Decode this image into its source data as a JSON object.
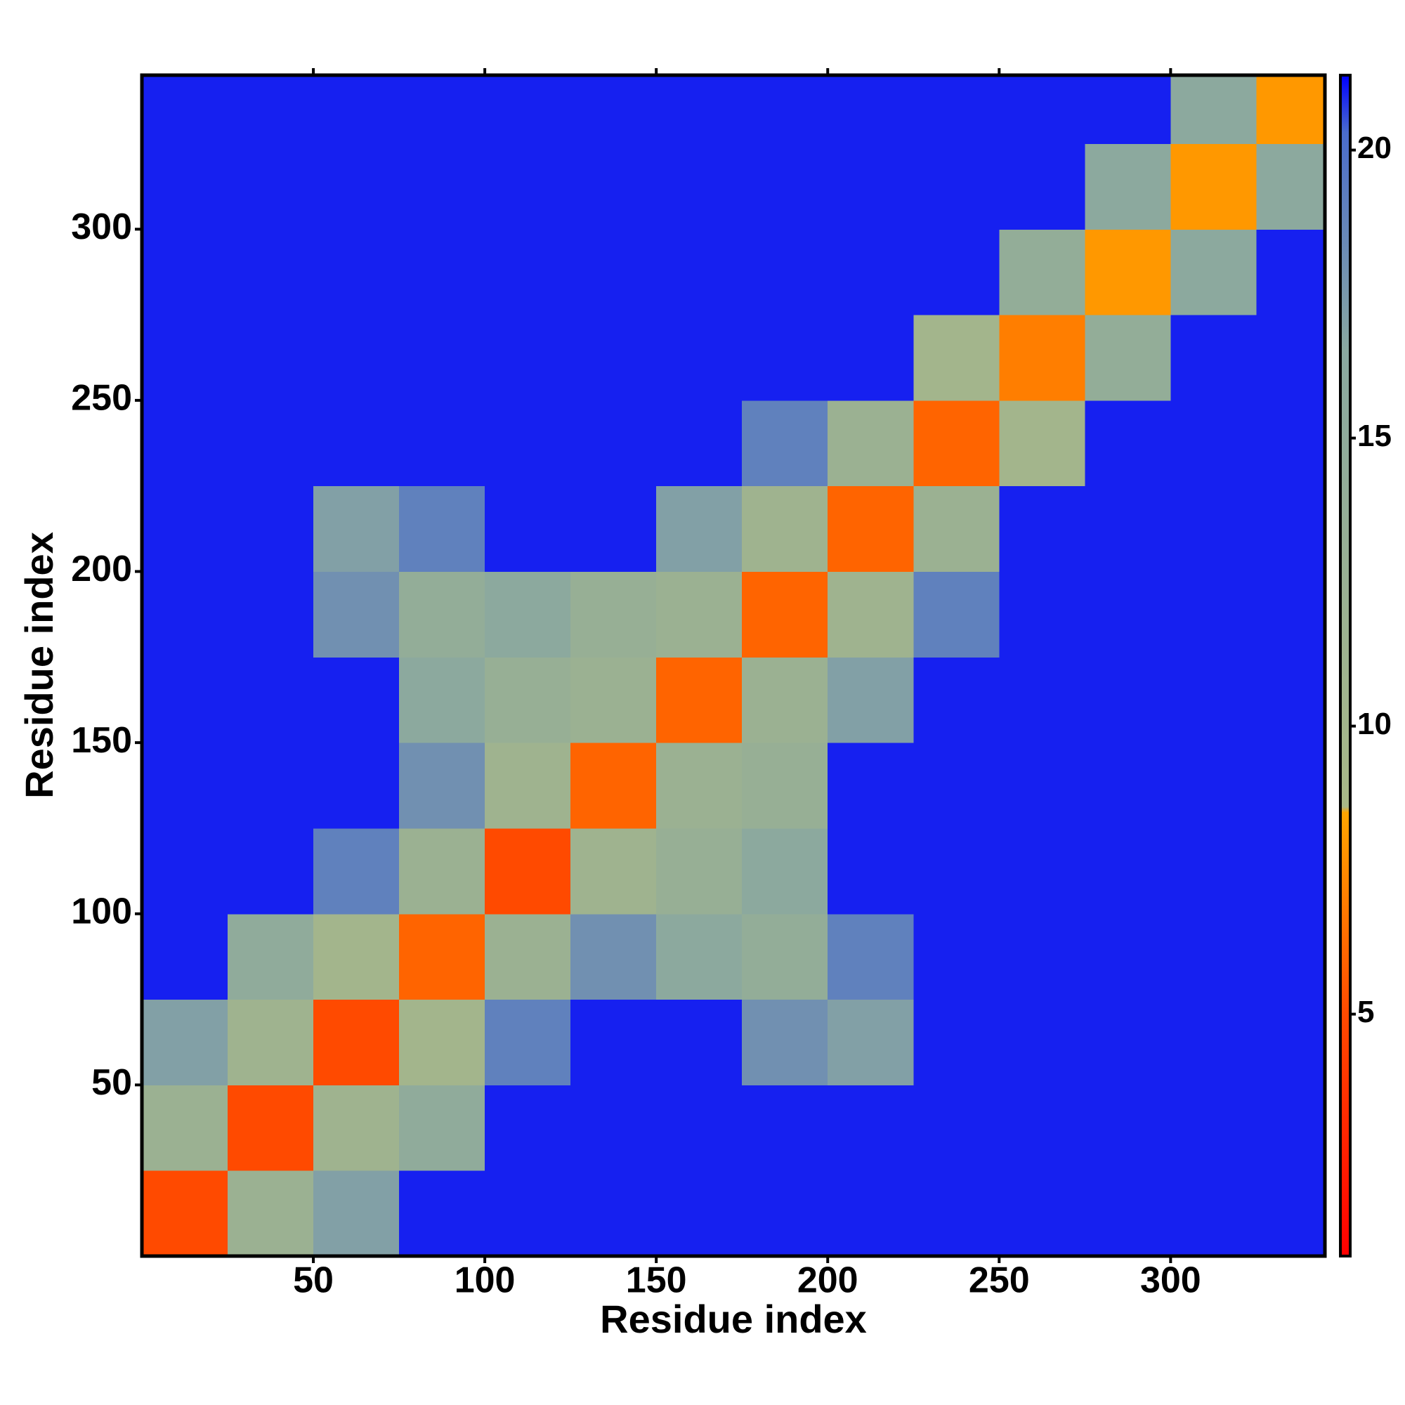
{
  "chart_data": {
    "type": "heatmap",
    "xlabel": "Residue index",
    "ylabel": "Residue index",
    "xbins": [
      0,
      25,
      50,
      75,
      100,
      125,
      150,
      175,
      200,
      225,
      250,
      275,
      300,
      325,
      345
    ],
    "ybins": [
      0,
      25,
      50,
      75,
      100,
      125,
      150,
      175,
      200,
      225,
      250,
      275,
      300,
      325,
      345
    ],
    "z": [
      [
        5,
        12,
        17,
        21,
        21,
        21,
        21,
        21,
        21,
        21,
        21,
        21,
        21,
        21
      ],
      [
        12,
        5,
        11,
        15,
        21,
        21,
        21,
        21,
        21,
        21,
        21,
        21,
        21,
        21
      ],
      [
        17,
        11,
        5,
        10,
        19,
        21,
        21,
        18,
        17,
        21,
        21,
        21,
        21,
        21
      ],
      [
        21,
        15,
        10,
        6,
        12,
        18,
        16,
        14,
        19,
        21,
        21,
        21,
        21,
        21
      ],
      [
        21,
        21,
        19,
        12,
        5,
        11,
        13,
        16,
        21,
        21,
        21,
        21,
        21,
        21
      ],
      [
        21,
        21,
        21,
        18,
        11,
        6,
        12,
        13,
        21,
        21,
        21,
        21,
        21,
        21
      ],
      [
        21,
        21,
        21,
        16,
        13,
        12,
        6,
        12,
        17,
        21,
        21,
        21,
        21,
        21
      ],
      [
        21,
        21,
        18,
        14,
        16,
        13,
        12,
        6,
        11,
        19,
        21,
        21,
        21,
        21
      ],
      [
        21,
        21,
        17,
        19,
        21,
        21,
        17,
        11,
        6,
        12,
        21,
        21,
        21,
        21
      ],
      [
        21,
        21,
        21,
        21,
        21,
        21,
        21,
        19,
        12,
        6,
        10,
        21,
        21,
        21
      ],
      [
        21,
        21,
        21,
        21,
        21,
        21,
        21,
        21,
        21,
        10,
        7,
        14,
        21,
        21
      ],
      [
        21,
        21,
        21,
        21,
        21,
        21,
        21,
        21,
        21,
        21,
        14,
        8,
        16,
        21
      ],
      [
        21,
        21,
        21,
        21,
        21,
        21,
        21,
        21,
        21,
        21,
        21,
        16,
        8,
        16
      ],
      [
        21,
        21,
        21,
        21,
        21,
        21,
        21,
        21,
        21,
        21,
        21,
        21,
        16,
        8
      ]
    ],
    "xlim": [
      0,
      345
    ],
    "ylim": [
      0,
      345
    ],
    "xticks": [
      50,
      100,
      150,
      200,
      250,
      300
    ],
    "yticks": [
      50,
      100,
      150,
      200,
      250,
      300
    ],
    "zlim": [
      0.8,
      21.3
    ],
    "zticks": [
      5,
      10,
      15,
      20
    ],
    "colorscale": [
      [
        0.8,
        "#ff0000"
      ],
      [
        5,
        "#ff4a00"
      ],
      [
        8.5,
        "#ffa500"
      ],
      [
        8.6,
        "#a8b888"
      ],
      [
        16.5,
        "#8aa8a0"
      ],
      [
        20.3,
        "#4a6ccc"
      ],
      [
        21.3,
        "#0000ff"
      ]
    ]
  }
}
